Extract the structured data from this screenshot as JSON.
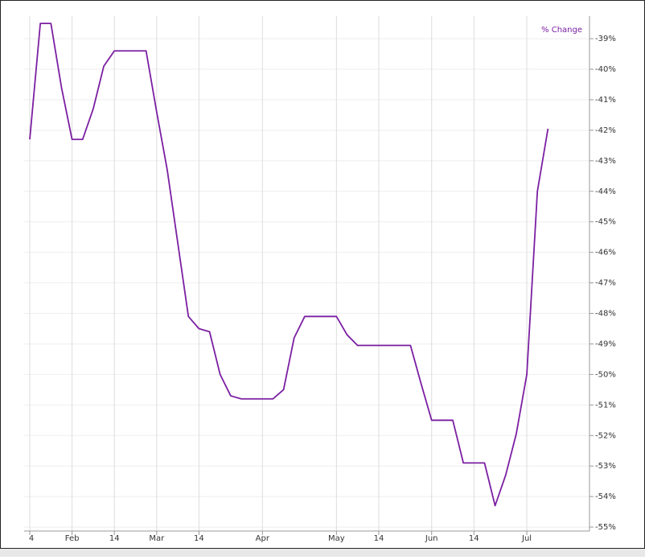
{
  "chart_data": {
    "type": "line",
    "categories": [
      "4",
      null,
      null,
      null,
      "Feb",
      null,
      null,
      null,
      "14",
      null,
      null,
      null,
      "Mar",
      null,
      null,
      null,
      "14",
      null,
      null,
      null,
      null,
      null,
      "Apr",
      null,
      null,
      null,
      null,
      null,
      null,
      "May",
      null,
      null,
      null,
      "14",
      null,
      null,
      null,
      null,
      "Jun",
      null,
      null,
      null,
      "14",
      null,
      null,
      null,
      null,
      "Jul",
      null,
      null
    ],
    "series": [
      {
        "name": "% Change",
        "color": "#7b1fa2",
        "values": [
          -42.3,
          -38.5,
          -38.5,
          -40.6,
          -42.3,
          -42.3,
          -41.3,
          -39.9,
          -39.4,
          -39.4,
          -39.4,
          -39.4,
          -41.4,
          -43.3,
          -45.7,
          -48.1,
          -48.5,
          -48.6,
          -50.0,
          -50.7,
          -50.8,
          -50.8,
          -50.8,
          -50.8,
          -50.5,
          -48.8,
          -48.1,
          -48.1,
          -48.1,
          -48.1,
          -48.7,
          -49.05,
          -49.05,
          -49.05,
          -49.05,
          -49.05,
          -49.05,
          -50.3,
          -51.5,
          -51.5,
          -51.5,
          -52.9,
          -52.9,
          -52.9,
          -54.3,
          -53.3,
          -51.95,
          -50.0,
          -44.0,
          -41.95
        ]
      }
    ],
    "ylim": [
      -55.13,
      -38.26
    ],
    "yticks": [
      {
        "value": -39,
        "label": "-39%"
      },
      {
        "value": -40,
        "label": "-40%"
      },
      {
        "value": -41,
        "label": "-41%"
      },
      {
        "value": -42,
        "label": "-42%"
      },
      {
        "value": -43,
        "label": "-43%"
      },
      {
        "value": -44,
        "label": "-44%"
      },
      {
        "value": -45,
        "label": "-45%"
      },
      {
        "value": -46,
        "label": "-46%"
      },
      {
        "value": -47,
        "label": "-47%"
      },
      {
        "value": -48,
        "label": "-48%"
      },
      {
        "value": -49,
        "label": "-49%"
      },
      {
        "value": -50,
        "label": "-50%"
      },
      {
        "value": -51,
        "label": "-51%"
      },
      {
        "value": -52,
        "label": "-52%"
      },
      {
        "value": -53,
        "label": "-53%"
      },
      {
        "value": -54,
        "label": "-54%"
      },
      {
        "value": -55,
        "label": "-55%"
      }
    ],
    "grid": true,
    "legend": "top-right"
  }
}
